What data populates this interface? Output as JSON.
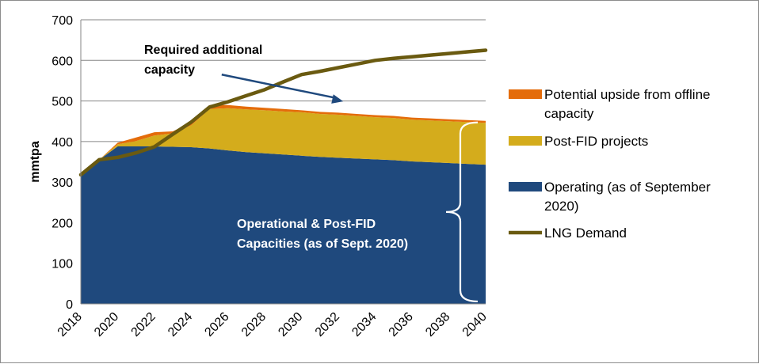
{
  "chart_data": {
    "type": "area",
    "ylabel": "mmtpa",
    "xlabel": "",
    "ylim": [
      0,
      700
    ],
    "xlim": [
      2018,
      2040
    ],
    "yticks": [
      0,
      100,
      200,
      300,
      400,
      500,
      600,
      700
    ],
    "xticks": [
      "2018",
      "2020",
      "2022",
      "2024",
      "2026",
      "2028",
      "2030",
      "2032",
      "2034",
      "2036",
      "2038",
      "2040"
    ],
    "grid": true,
    "legend_position": "right",
    "stacked_series": [
      {
        "name_lines": [
          "Operating (as of September",
          "2020)"
        ],
        "color": "#1f497d",
        "x": [
          2018,
          2019,
          2020,
          2021,
          2022,
          2023,
          2024,
          2025,
          2026,
          2027,
          2028,
          2029,
          2030,
          2031,
          2032,
          2033,
          2034,
          2035,
          2036,
          2037,
          2038,
          2039,
          2040
        ],
        "values": [
          318,
          355,
          388,
          388,
          388,
          387,
          386,
          383,
          378,
          374,
          371,
          368,
          365,
          362,
          360,
          358,
          356,
          354,
          351,
          349,
          347,
          345,
          343
        ]
      },
      {
        "name_lines": [
          "Post-FID projects"
        ],
        "color": "#d4ac1c",
        "x": [
          2018,
          2019,
          2020,
          2021,
          2022,
          2023,
          2024,
          2025,
          2026,
          2027,
          2028,
          2029,
          2030,
          2031,
          2032,
          2033,
          2034,
          2035,
          2036,
          2037,
          2038,
          2039,
          2040
        ],
        "values": [
          0,
          0,
          5,
          13,
          27,
          33,
          54,
          97,
          104,
          105,
          106,
          106,
          107,
          106,
          106,
          105,
          104,
          104,
          103,
          103,
          103,
          103,
          103
        ]
      },
      {
        "name_lines": [
          "Potential upside from offline",
          "capacity"
        ],
        "color": "#e46c0a",
        "x": [
          2018,
          2019,
          2020,
          2021,
          2022,
          2023,
          2024,
          2025,
          2026,
          2027,
          2028,
          2029,
          2030,
          2031,
          2032,
          2033,
          2034,
          2035,
          2036,
          2037,
          2038,
          2039,
          2040
        ],
        "values": [
          0,
          0,
          4,
          9,
          8,
          5,
          7,
          10,
          8,
          7,
          6,
          6,
          5,
          5,
          5,
          5,
          5,
          5,
          5,
          5,
          5,
          5,
          5
        ]
      }
    ],
    "line_series": [
      {
        "name_lines": [
          "LNG Demand"
        ],
        "color": "#6a5a10",
        "x": [
          2018,
          2019,
          2020,
          2021,
          2022,
          2023,
          2024,
          2025,
          2026,
          2027,
          2028,
          2029,
          2030,
          2031,
          2032,
          2033,
          2034,
          2035,
          2036,
          2037,
          2038,
          2039,
          2040
        ],
        "values": [
          318,
          355,
          361,
          372,
          387,
          418,
          448,
          485,
          498,
          513,
          528,
          547,
          565,
          573,
          582,
          591,
          600,
          605,
          609,
          613,
          617,
          621,
          625
        ]
      }
    ],
    "annotations": {
      "required_lines": [
        "Required additional",
        "capacity"
      ],
      "operational_lines": [
        "Operational & Post-FID",
        "Capacities (as of  Sept. 2020)"
      ],
      "arrow_from": [
        2026,
        565
      ],
      "arrow_to": [
        2032,
        499
      ],
      "brace_x": 2040,
      "brace_ylim": [
        6,
        447
      ]
    }
  }
}
